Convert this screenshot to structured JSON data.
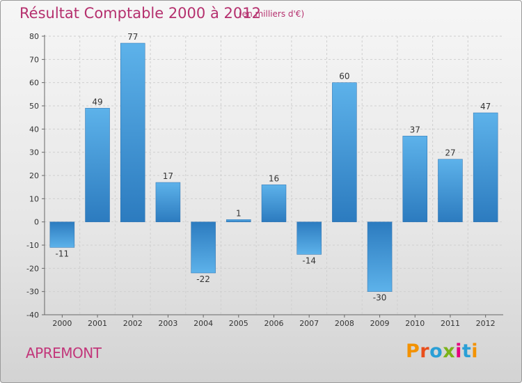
{
  "header": {
    "title": "Résultat Comptable 2000 à 2012",
    "subtitle": "(en milliers d'€)"
  },
  "footer": {
    "commune": "APREMONT",
    "logo": "Proxiti"
  },
  "colors": {
    "title": "#b5306e",
    "bar_light": "#5db2ea",
    "bar_dark": "#2c7bbf",
    "logo_letters": [
      "#f39200",
      "#e94e1b",
      "#2a9fd6",
      "#7bb31a",
      "#e6007e",
      "#2a9fd6",
      "#f39200"
    ]
  },
  "chart_data": {
    "type": "bar",
    "title": "Résultat Comptable 2000 à 2012",
    "subtitle": "(en milliers d'€)",
    "xlabel": "",
    "ylabel": "",
    "categories": [
      "2000",
      "2001",
      "2002",
      "2003",
      "2004",
      "2005",
      "2006",
      "2007",
      "2008",
      "2009",
      "2010",
      "2011",
      "2012"
    ],
    "values": [
      -11,
      49,
      77,
      17,
      -22,
      1,
      16,
      -14,
      60,
      -30,
      37,
      27,
      47
    ],
    "value_labels": [
      "-11",
      "49",
      "77",
      "17",
      "-22",
      "1",
      "16",
      "-14",
      "60",
      "-30",
      "37",
      "27",
      "47"
    ],
    "ylim": [
      -40,
      80
    ],
    "yticks": [
      -40,
      -30,
      -20,
      -10,
      0,
      10,
      20,
      30,
      40,
      50,
      60,
      70,
      80
    ],
    "grid": true
  }
}
